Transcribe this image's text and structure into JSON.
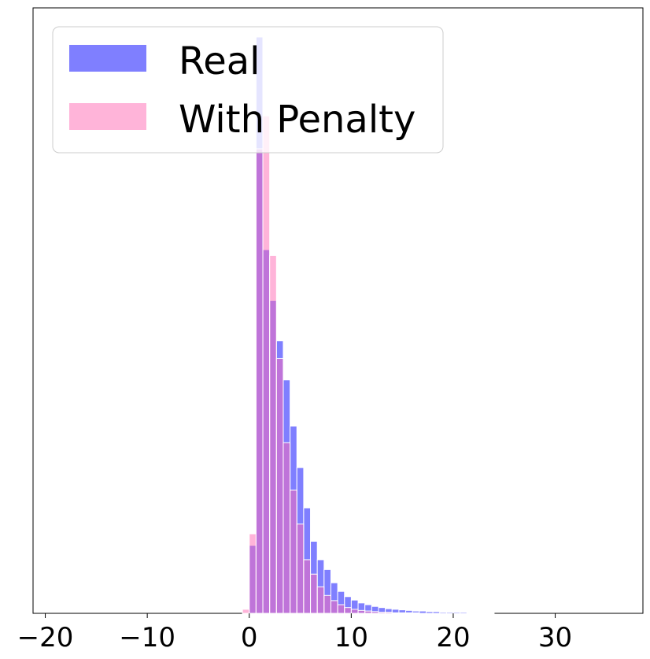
{
  "chart_data": {
    "type": "histogram",
    "title": "",
    "xlabel": "",
    "ylabel": "",
    "xlim": [
      -21.2,
      38.6
    ],
    "y_axis_ticks_shown": false,
    "grid": false,
    "legend_placement": "top-left",
    "x_ticks": [
      {
        "value": -20,
        "label": "−20"
      },
      {
        "value": -10,
        "label": "−10"
      },
      {
        "value": 0,
        "label": "0"
      },
      {
        "value": 10,
        "label": "10"
      },
      {
        "value": 20,
        "label": "20"
      },
      {
        "value": 30,
        "label": "30"
      }
    ],
    "bin_width": 0.667,
    "bin_start": -0.667,
    "y_unit": "relative height (1.0 = tallest bar)",
    "series": [
      {
        "name": "Real",
        "color": "#0000ff",
        "opacity": 0.5,
        "values": [
          0.0,
          0.118,
          1.0,
          0.631,
          0.543,
          0.473,
          0.405,
          0.325,
          0.253,
          0.183,
          0.125,
          0.093,
          0.076,
          0.053,
          0.038,
          0.029,
          0.023,
          0.018,
          0.015,
          0.012,
          0.01,
          0.008,
          0.007,
          0.006,
          0.005,
          0.004,
          0.004,
          0.003,
          0.003,
          0.002,
          0.002,
          0.002,
          0.002,
          0.001,
          0.001,
          0.001,
          0.001
        ]
      },
      {
        "name": "With Penalty",
        "color": "#ff69b4",
        "opacity": 0.5,
        "values": [
          0.007,
          0.138,
          0.806,
          0.863,
          0.621,
          0.442,
          0.296,
          0.214,
          0.155,
          0.093,
          0.068,
          0.046,
          0.031,
          0.022,
          0.015,
          0.01,
          0.007,
          0.005,
          0.004,
          0.003,
          0.002,
          0.002,
          0.001,
          0.001,
          0.001,
          0.001,
          0.0,
          0.0,
          0.0,
          0.0,
          0.0,
          0.0,
          0.0,
          0.0,
          0.0,
          0.0,
          0.0
        ]
      }
    ]
  }
}
